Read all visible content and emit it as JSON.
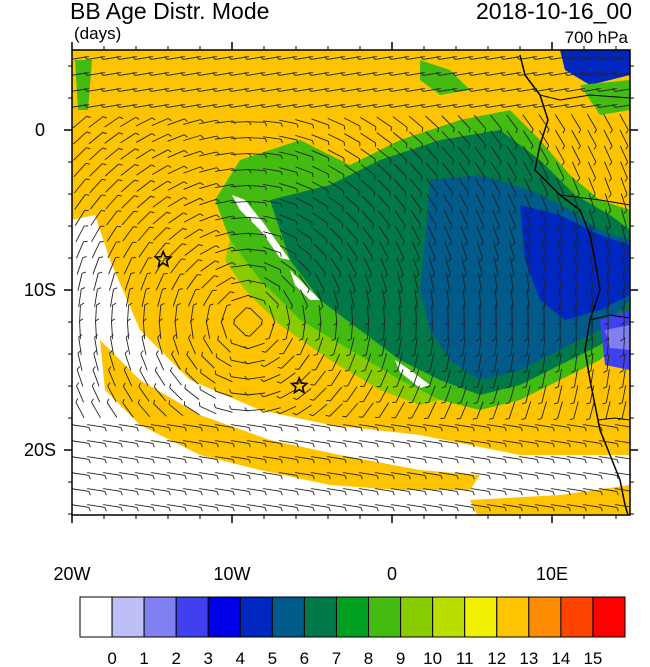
{
  "header": {
    "title": "BB Age Distr. Mode",
    "datetime": "2018-10-16_00",
    "units": "(days)",
    "level": "700 hPa"
  },
  "axes": {
    "lon_labels": [
      "20W",
      "10W",
      "0",
      "10E"
    ],
    "lat_labels": [
      "0",
      "10S",
      "20S"
    ]
  },
  "markers": [
    {
      "name": "star-marker-1",
      "lon": -14.3,
      "lat": -8.1
    },
    {
      "name": "star-marker-2",
      "lon": -5.8,
      "lat": -16.0
    }
  ],
  "colorbar": {
    "labels": [
      "0",
      "1",
      "2",
      "3",
      "4",
      "5",
      "6",
      "7",
      "8",
      "9",
      "10",
      "11",
      "12",
      "13",
      "14",
      "15"
    ],
    "colors": [
      "#ffffff",
      "#bfbff7",
      "#8080f2",
      "#4040f0",
      "#0000e8",
      "#0028c0",
      "#005a8a",
      "#007848",
      "#00a020",
      "#44bb10",
      "#88cc00",
      "#bbdd00",
      "#f0f000",
      "#ffc400",
      "#ff8c00",
      "#ff4400",
      "#ff0000"
    ]
  }
}
